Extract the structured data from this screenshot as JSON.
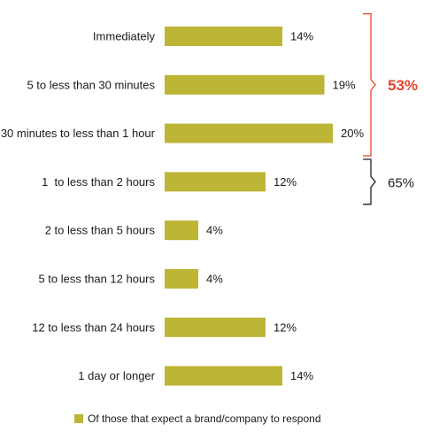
{
  "chart_data": {
    "type": "bar",
    "orientation": "horizontal",
    "categories": [
      "Immediately",
      "5 to less than 30 minutes",
      "30 minutes to less than 1 hour",
      "1  to less than 2 hours",
      "2 to less than 5 hours",
      "5 to less than 12 hours",
      "12 to less than 24 hours",
      "1 day or longer"
    ],
    "series": [
      {
        "name": "Of those that expect a brand/company to respond",
        "values": [
          14,
          19,
          20,
          12,
          4,
          4,
          12,
          14
        ],
        "color": "#bcb536"
      }
    ],
    "value_labels": [
      "14%",
      "19%",
      "20%",
      "12%",
      "4%",
      "4%",
      "12%",
      "14%"
    ],
    "xlim": [
      0,
      20
    ],
    "grid": false,
    "legend_position": "bottom",
    "annotations": [
      {
        "label": "53%",
        "from_index": 0,
        "to_index": 2,
        "color": "#e8412c"
      },
      {
        "label": "65%",
        "from_index": 3,
        "to_index": 3,
        "color": "#222222"
      }
    ]
  }
}
